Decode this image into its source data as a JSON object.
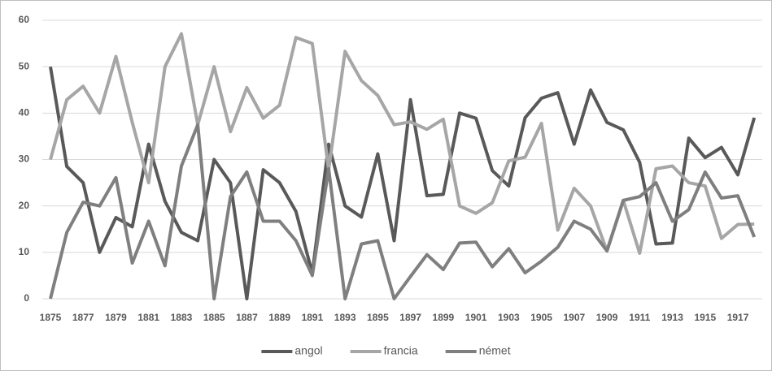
{
  "chart_data": {
    "type": "line",
    "categories": [
      "1875",
      null,
      "1877",
      null,
      "1879",
      null,
      "1881",
      null,
      "1883",
      null,
      "1885",
      null,
      "1887",
      null,
      "1889",
      null,
      "1891",
      null,
      "1893",
      null,
      "1895",
      null,
      "1897",
      null,
      "1899",
      null,
      "1901",
      null,
      "1903",
      null,
      "1905",
      null,
      "1907",
      null,
      "1909",
      null,
      "1911",
      null,
      "1913",
      null,
      "1915",
      null,
      "1917",
      null
    ],
    "series": [
      {
        "name": "angol",
        "color": "#595959",
        "values": [
          50,
          28.5,
          25,
          10,
          17.5,
          15.5,
          33.3,
          21,
          14.3,
          12.5,
          30,
          25,
          0,
          27.8,
          25,
          18.8,
          5.5,
          33.3,
          20,
          17.6,
          31.2,
          12.5,
          42.9,
          22.2,
          22.5,
          40,
          38.9,
          27.6,
          24.3,
          39,
          43.2,
          44.4,
          33.3,
          45,
          38,
          36.4,
          29.4,
          11.8,
          12,
          34.6,
          30.4,
          32.6,
          26.7,
          39
        ]
      },
      {
        "name": "francia",
        "color": "#a6a6a6",
        "values": [
          30,
          42.9,
          45.8,
          40,
          52.2,
          38,
          25,
          50,
          57.1,
          37.5,
          50,
          36,
          45.5,
          38.9,
          41.7,
          56.3,
          55,
          27.8,
          53.3,
          47,
          43.8,
          37.5,
          38.1,
          36.5,
          38.7,
          20,
          18.4,
          20.7,
          29.7,
          30.5,
          37.8,
          14.8,
          23.8,
          20,
          10.3,
          21.2,
          9.8,
          28,
          28.6,
          25,
          24.3,
          13,
          16,
          16.1
        ]
      },
      {
        "name": "német",
        "color": "#7f7f7f",
        "values": [
          0,
          14.3,
          20.8,
          20,
          26.1,
          7.7,
          16.7,
          7.1,
          28.6,
          37.5,
          0,
          22,
          27.3,
          16.7,
          16.7,
          12.5,
          5,
          28,
          0,
          11.8,
          12.5,
          0,
          4.8,
          9.5,
          6.3,
          12,
          12.2,
          6.9,
          10.8,
          5.6,
          8.1,
          11.1,
          16.7,
          15,
          10.3,
          21.2,
          22,
          25,
          16.7,
          19.2,
          27.3,
          21.7,
          22.2,
          13.3
        ]
      }
    ],
    "ylim": [
      0,
      60
    ],
    "yticks": [
      0,
      10,
      20,
      30,
      40,
      50,
      60
    ],
    "grid": true,
    "legend": "bottom"
  }
}
